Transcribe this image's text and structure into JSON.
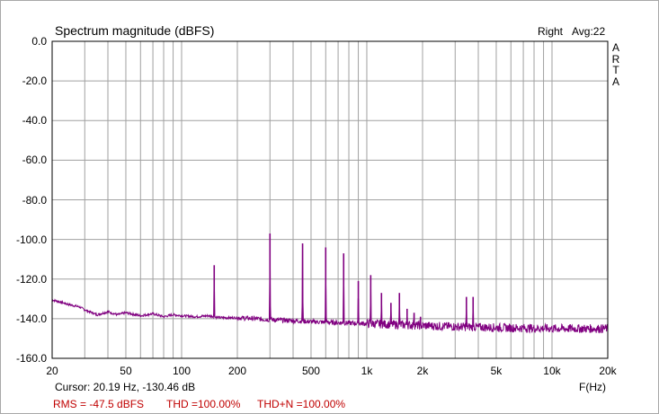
{
  "header": {
    "title": "Spectrum magnitude (dBFS)",
    "channel": "Right",
    "avg": "Avg:22"
  },
  "brand": {
    "letters": [
      "A",
      "R",
      "T",
      "A"
    ]
  },
  "footer": {
    "cursor": "Cursor: 20.19 Hz, -130.46 dB",
    "rms": "RMS =  -47.5  dBFS",
    "thd": "THD =100.00%",
    "thdn": "THD+N =100.00%"
  },
  "colors": {
    "trace": "#800080",
    "grid": "#a0a0a0",
    "red_text": "#c00000"
  },
  "chart_data": {
    "type": "line",
    "title": "Spectrum magnitude (dBFS)",
    "xlabel": "F(Hz)",
    "ylabel": "",
    "x_scale": "log",
    "xlim": [
      20,
      20000
    ],
    "ylim": [
      -160,
      0
    ],
    "grid": true,
    "y_ticks": [
      "0.0",
      "-20.0",
      "-40.0",
      "-60.0",
      "-80.0",
      "-100.0",
      "-120.0",
      "-140.0",
      "-160.0"
    ],
    "x_ticks": [
      {
        "v": 20,
        "label": "20"
      },
      {
        "v": 50,
        "label": "50"
      },
      {
        "v": 100,
        "label": "100"
      },
      {
        "v": 200,
        "label": "200"
      },
      {
        "v": 500,
        "label": "500"
      },
      {
        "v": 1000,
        "label": "1k"
      },
      {
        "v": 2000,
        "label": "2k"
      },
      {
        "v": 5000,
        "label": "5k"
      },
      {
        "v": 10000,
        "label": "10k"
      },
      {
        "v": 20000,
        "label": "20k"
      }
    ],
    "noise_floor": [
      [
        20,
        -130.5
      ],
      [
        22,
        -131.5
      ],
      [
        25,
        -133
      ],
      [
        28,
        -134
      ],
      [
        30,
        -135.5
      ],
      [
        35,
        -138
      ],
      [
        40,
        -136.5
      ],
      [
        45,
        -138
      ],
      [
        50,
        -137
      ],
      [
        60,
        -138.5
      ],
      [
        70,
        -137.5
      ],
      [
        80,
        -139
      ],
      [
        90,
        -138
      ],
      [
        100,
        -138.5
      ],
      [
        120,
        -139
      ],
      [
        140,
        -138.5
      ],
      [
        160,
        -139.5
      ],
      [
        200,
        -139.5
      ],
      [
        250,
        -140
      ],
      [
        300,
        -140.5
      ],
      [
        400,
        -141
      ],
      [
        500,
        -141.5
      ],
      [
        700,
        -142
      ],
      [
        1000,
        -142.5
      ],
      [
        1500,
        -143
      ],
      [
        2000,
        -143.5
      ],
      [
        3000,
        -144
      ],
      [
        5000,
        -144.5
      ],
      [
        10000,
        -145
      ],
      [
        20000,
        -145
      ]
    ],
    "peaks": [
      {
        "f": 150,
        "db": -113
      },
      {
        "f": 300,
        "db": -97
      },
      {
        "f": 450,
        "db": -102
      },
      {
        "f": 600,
        "db": -104
      },
      {
        "f": 750,
        "db": -107
      },
      {
        "f": 900,
        "db": -121
      },
      {
        "f": 1050,
        "db": -118
      },
      {
        "f": 1200,
        "db": -127
      },
      {
        "f": 1350,
        "db": -132
      },
      {
        "f": 1500,
        "db": -127
      },
      {
        "f": 1650,
        "db": -135
      },
      {
        "f": 1800,
        "db": -137
      },
      {
        "f": 1950,
        "db": -139
      },
      {
        "f": 3450,
        "db": -129
      },
      {
        "f": 3750,
        "db": -129
      }
    ]
  }
}
